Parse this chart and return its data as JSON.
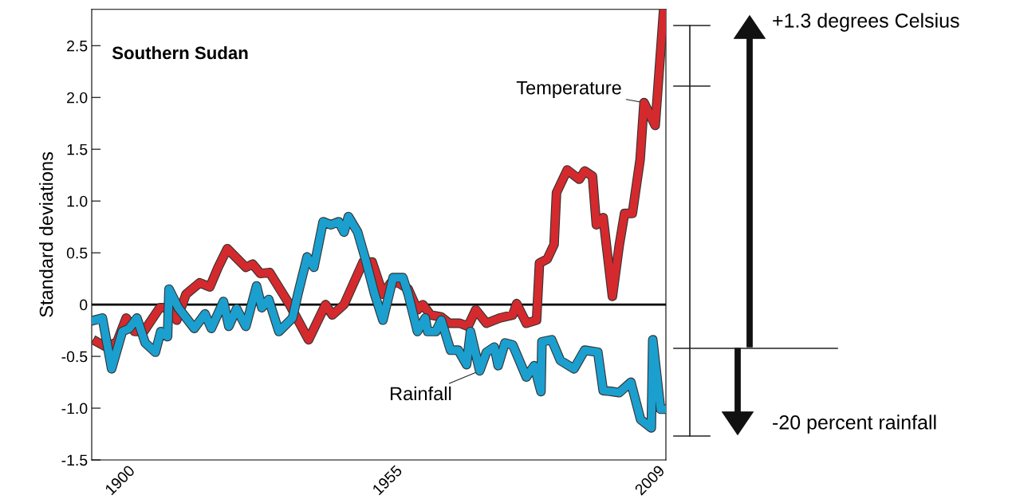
{
  "chart_data": {
    "type": "line",
    "title": "Southern Sudan",
    "ylabel": "Standard deviations",
    "xlim": [
      1892.6,
      2010.7
    ],
    "xticks": [
      1900,
      1955,
      2009
    ],
    "ylim": [
      -1.5,
      2.85
    ],
    "yticks": [
      -1.5,
      {
        "value": -1,
        "label": "-1.0"
      },
      -0.5,
      0,
      0.5,
      {
        "value": 1,
        "label": "1.0"
      },
      1.5,
      {
        "value": 2,
        "label": "2.0"
      },
      2.5
    ],
    "grid": false,
    "legend": false,
    "marker": "none",
    "line_style": "solid",
    "series": [
      {
        "name": "Temperature",
        "color": "#d42a2e",
        "x": [
          1893.7,
          1895.6,
          1897.8,
          1899.7,
          1901.4,
          1903.3,
          1906.6,
          1908.2,
          1910.1,
          1912.0,
          1914.8,
          1916.9,
          1918.6,
          1920.5,
          1924.3,
          1925.7,
          1927.3,
          1929.2,
          1933.3,
          1937.2,
          1940.7,
          1942.1,
          1944.5,
          1948.4,
          1950.3,
          1952.5,
          1954.1,
          1955.7,
          1957.7,
          1959.6,
          1960.7,
          1962.3,
          1964.5,
          1966.1,
          1968.3,
          1970.0,
          1971.6,
          1973.8,
          1976.5,
          1979.2,
          1980.0,
          1982.0,
          1984.1,
          1984.7,
          1986.3,
          1987.7,
          1988.2,
          1990.4,
          1992.9,
          1994.0,
          1995.6,
          1996.4,
          1997.8,
          1999.7,
          2001.1,
          2002.2,
          2003.8,
          2005.4,
          2006.2,
          2008.5,
          2010.2
        ],
        "values": [
          -0.36,
          -0.41,
          -0.36,
          -0.13,
          -0.26,
          -0.26,
          -0.03,
          -0.03,
          -0.15,
          0.1,
          0.21,
          0.17,
          0.36,
          0.54,
          0.36,
          0.39,
          0.3,
          0.31,
          0.0,
          -0.34,
          0.0,
          -0.1,
          0.0,
          0.41,
          0.41,
          0.1,
          0.21,
          0.21,
          0.15,
          -0.05,
          0.0,
          -0.1,
          -0.12,
          -0.18,
          -0.18,
          -0.21,
          -0.05,
          -0.18,
          -0.13,
          -0.1,
          0.01,
          -0.18,
          -0.15,
          0.4,
          0.44,
          0.58,
          1.08,
          1.3,
          1.21,
          1.29,
          1.24,
          0.77,
          0.84,
          0.08,
          0.57,
          0.88,
          0.88,
          1.4,
          1.95,
          1.73,
          2.82
        ]
      },
      {
        "name": "Rainfall",
        "color": "#1b9fcf",
        "x": [
          1893.2,
          1894.8,
          1896.7,
          1898.9,
          1900.3,
          1901.9,
          1903.6,
          1905.7,
          1906.8,
          1908.2,
          1908.5,
          1910.4,
          1913.7,
          1915.9,
          1917.2,
          1919.7,
          1920.8,
          1922.4,
          1924.3,
          1926.5,
          1927.6,
          1929.0,
          1931.1,
          1933.9,
          1935.0,
          1936.9,
          1938.3,
          1940.2,
          1941.8,
          1943.4,
          1944.5,
          1945.4,
          1947.3,
          1948.9,
          1950.8,
          1952.5,
          1954.6,
          1956.6,
          1957.7,
          1959.6,
          1961.2,
          1961.7,
          1963.4,
          1964.5,
          1966.4,
          1968.0,
          1969.7,
          1970.5,
          1972.4,
          1973.8,
          1975.4,
          1976.2,
          1977.6,
          1979.2,
          1982.0,
          1983.6,
          1985.0,
          1985.2,
          1987.2,
          1989.0,
          1991.8,
          1994.0,
          1996.7,
          1997.8,
          1999.7,
          2001.1,
          2003.5,
          2005.5,
          2007.7,
          2008.0,
          2009.6,
          2010.5
        ],
        "values": [
          -0.15,
          -0.13,
          -0.62,
          -0.26,
          -0.23,
          -0.13,
          -0.37,
          -0.46,
          -0.26,
          -0.31,
          0.15,
          -0.03,
          -0.23,
          -0.09,
          -0.23,
          0.03,
          -0.21,
          -0.04,
          -0.21,
          0.18,
          -0.03,
          0.05,
          -0.26,
          -0.13,
          0.1,
          0.46,
          0.36,
          0.8,
          0.77,
          0.8,
          0.7,
          0.85,
          0.7,
          0.44,
          0.1,
          -0.15,
          0.26,
          0.26,
          0.1,
          -0.26,
          -0.13,
          -0.26,
          -0.26,
          -0.15,
          -0.44,
          -0.44,
          -0.58,
          -0.26,
          -0.64,
          -0.46,
          -0.41,
          -0.59,
          -0.37,
          -0.39,
          -0.7,
          -0.59,
          -0.84,
          -0.36,
          -0.34,
          -0.54,
          -0.62,
          -0.44,
          -0.46,
          -0.83,
          -0.84,
          -0.85,
          -0.75,
          -1.11,
          -1.19,
          -0.34,
          -1.01,
          -1.01
        ]
      }
    ],
    "ref_lines": [
      {
        "axis": "y",
        "value": 0,
        "color": "#000000"
      }
    ],
    "annotations": [
      "+1.3 degrees Celsius",
      "-20 percent rainfall"
    ]
  }
}
